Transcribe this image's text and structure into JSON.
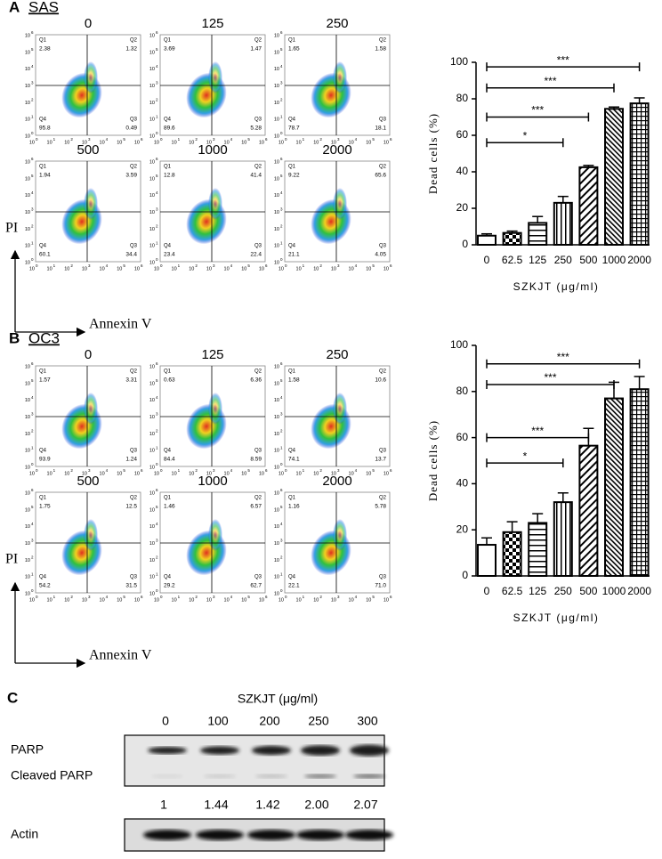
{
  "quadrant_names": [
    "Q1",
    "Q2",
    "Q3",
    "Q4"
  ],
  "flow_axis": {
    "base": "10",
    "exponents": [
      "0",
      "1",
      "2",
      "3",
      "4",
      "5",
      "6"
    ]
  },
  "panel_a": {
    "label": "A",
    "cell_line": "SAS",
    "y_axis_label": "PI",
    "x_axis_label": "Annexin V",
    "plots": [
      {
        "dose": "0",
        "q1": "2.38",
        "q2": "1.32",
        "q3": "0.49",
        "q4": "95.8"
      },
      {
        "dose": "125",
        "q1": "3.69",
        "q2": "1.47",
        "q3": "5.28",
        "q4": "89.6"
      },
      {
        "dose": "250",
        "q1": "1.65",
        "q2": "1.58",
        "q3": "18.1",
        "q4": "78.7"
      },
      {
        "dose": "500",
        "q1": "1.94",
        "q2": "3.59",
        "q3": "34.4",
        "q4": "60.1"
      },
      {
        "dose": "1000",
        "q1": "12.8",
        "q2": "41.4",
        "q3": "22.4",
        "q4": "23.4"
      },
      {
        "dose": "2000",
        "q1": "9.22",
        "q2": "65.6",
        "q3": "4.05",
        "q4": "21.1"
      }
    ]
  },
  "panel_b": {
    "label": "B",
    "cell_line": "OC3",
    "y_axis_label": "PI",
    "x_axis_label": "Annexin V",
    "plots": [
      {
        "dose": "0",
        "q1": "1.57",
        "q2": "3.31",
        "q3": "1.24",
        "q4": "93.9"
      },
      {
        "dose": "125",
        "q1": "0.63",
        "q2": "6.36",
        "q3": "8.59",
        "q4": "84.4"
      },
      {
        "dose": "250",
        "q1": "1.58",
        "q2": "10.6",
        "q3": "13.7",
        "q4": "74.1"
      },
      {
        "dose": "500",
        "q1": "1.75",
        "q2": "12.5",
        "q3": "31.5",
        "q4": "54.2"
      },
      {
        "dose": "1000",
        "q1": "1.46",
        "q2": "6.57",
        "q3": "62.7",
        "q4": "29.2"
      },
      {
        "dose": "2000",
        "q1": "1.16",
        "q2": "5.78",
        "q3": "71.0",
        "q4": "22.1"
      }
    ]
  },
  "chart_data": [
    {
      "type": "bar",
      "ylabel": "Dead cells (%)",
      "xlabel": "SZKJT (μg/ml)",
      "categories": [
        "0",
        "62.5",
        "125",
        "250",
        "500",
        "1000",
        "2000"
      ],
      "values": [
        5,
        6.5,
        12,
        23,
        42.5,
        74.5,
        77.5
      ],
      "errors": [
        1,
        1,
        3.5,
        3.5,
        1,
        1,
        3
      ],
      "color": "#000000",
      "ylim": [
        0,
        100
      ],
      "yticks": [
        0,
        20,
        40,
        60,
        80,
        100
      ],
      "brackets": [
        {
          "from": 0,
          "to": 3,
          "y": 56,
          "label": "*"
        },
        {
          "from": 0,
          "to": 4,
          "y": 70,
          "label": "***"
        },
        {
          "from": 0,
          "to": 5,
          "y": 86,
          "label": "***"
        },
        {
          "from": 0,
          "to": 6,
          "y": 97.5,
          "label": "***"
        }
      ]
    },
    {
      "type": "bar",
      "ylabel": "Dead cells (%)",
      "xlabel": "SZKJT (μg/ml)",
      "categories": [
        "0",
        "62.5",
        "125",
        "250",
        "500",
        "1000",
        "2000"
      ],
      "values": [
        13.5,
        19,
        23,
        32,
        56.5,
        77,
        81
      ],
      "errors": [
        3,
        4.5,
        4,
        4,
        7.5,
        7,
        5.5
      ],
      "color": "#000000",
      "ylim": [
        0,
        100
      ],
      "yticks": [
        0,
        20,
        40,
        60,
        80,
        100
      ],
      "brackets": [
        {
          "from": 0,
          "to": 3,
          "y": 49,
          "label": "*"
        },
        {
          "from": 0,
          "to": 4,
          "y": 60,
          "label": "***"
        },
        {
          "from": 0,
          "to": 5,
          "y": 83,
          "label": "***"
        },
        {
          "from": 0,
          "to": 6,
          "y": 92,
          "label": "***"
        }
      ]
    }
  ],
  "panel_c": {
    "label": "C",
    "title": "SZKJT (μg/ml)",
    "doses": [
      "0",
      "100",
      "200",
      "250",
      "300"
    ],
    "bands": [
      "PARP",
      "Cleaved PARP",
      "Actin"
    ],
    "ratios": [
      "1",
      "1.44",
      "1.42",
      "2.00",
      "2.07"
    ]
  }
}
